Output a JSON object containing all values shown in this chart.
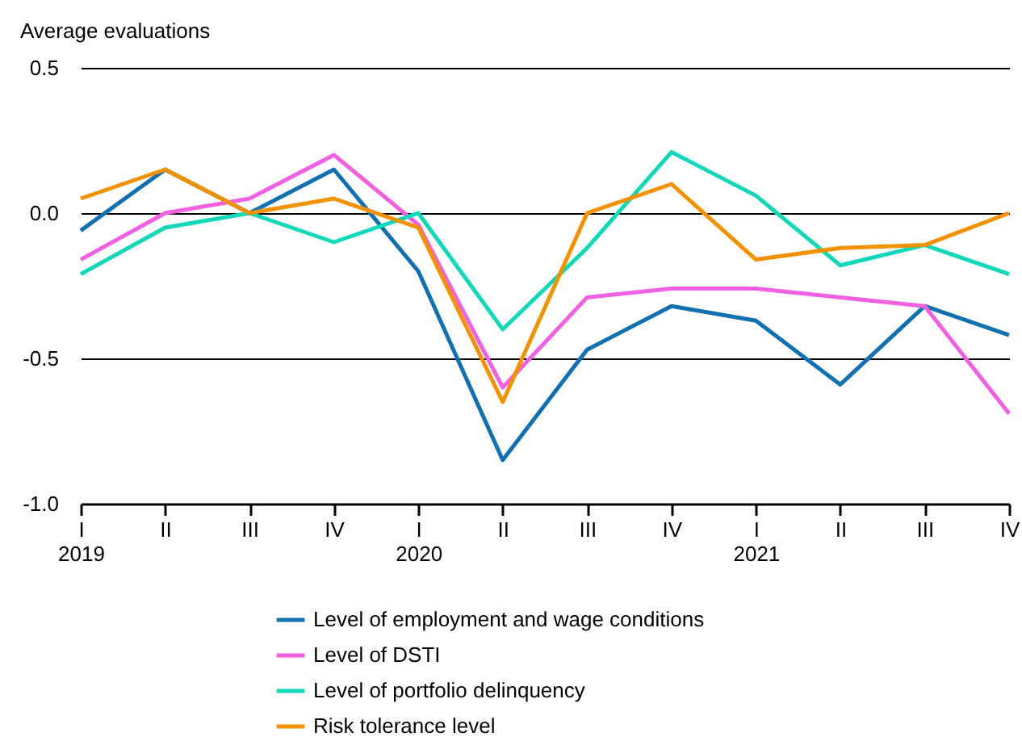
{
  "chart_data": {
    "type": "line",
    "ylabel": "Average evaluations",
    "categories": [
      "I\n2019",
      "II",
      "III",
      "IV",
      "I\n2020",
      "II",
      "III",
      "IV",
      "I\n2021",
      "II",
      "III",
      "IV"
    ],
    "series": [
      {
        "name": "Level of employment and wage conditions",
        "color": "#1070b0",
        "values": [
          -0.06,
          0.15,
          0,
          0.15,
          -0.2,
          -0.85,
          -0.47,
          -0.32,
          -0.37,
          -0.59,
          -0.32,
          -0.42
        ]
      },
      {
        "name": "Level of DSTI",
        "color": "#f060e0",
        "values": [
          -0.16,
          0,
          0.05,
          0.2,
          -0.04,
          -0.6,
          -0.29,
          -0.26,
          -0.26,
          -0.29,
          -0.32,
          -0.69
        ]
      },
      {
        "name": "Level of portfolio delinquency",
        "color": "#10d8b8",
        "values": [
          -0.21,
          -0.05,
          0,
          -0.1,
          0,
          -0.4,
          -0.12,
          0.21,
          0.06,
          -0.18,
          -0.11,
          -0.21
        ]
      },
      {
        "name": "Risk tolerance level",
        "color": "#f39200",
        "values": [
          0.05,
          0.15,
          0,
          0.05,
          -0.05,
          -0.65,
          0,
          0.1,
          -0.16,
          -0.12,
          -0.11,
          0
        ]
      }
    ],
    "ylim": [
      -1,
      0.5
    ],
    "yticks": [
      {
        "value": -1,
        "label": "-1.0"
      },
      -0.5,
      {
        "value": 0,
        "label": "0.0"
      },
      0.5
    ],
    "grid": "y",
    "legend": "bottom",
    "line_style": "solid",
    "marker": "none"
  }
}
